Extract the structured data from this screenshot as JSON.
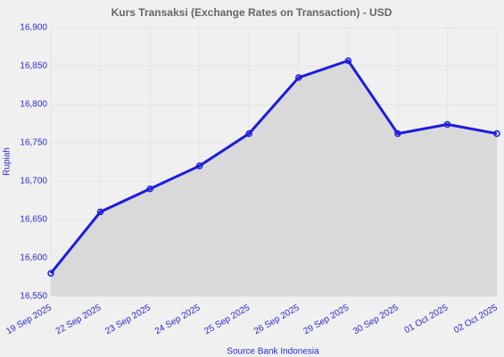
{
  "chart_data": {
    "type": "area",
    "title": "Kurs Transaksi (Exchange Rates on Transaction) - USD",
    "ylabel": "Rupiah",
    "source": "Source Bank Indonesia",
    "categories": [
      "19 Sep 2025",
      "22 Sep 2025",
      "23 Sep 2025",
      "24 Sep 2025",
      "25 Sep 2025",
      "26 Sep 2025",
      "29 Sep 2025",
      "30 Sep 2025",
      "01 Oct 2025",
      "02 Oct 2025"
    ],
    "values": [
      16580,
      16660,
      16690,
      16720,
      16762,
      16835,
      16857,
      16762,
      16774,
      16762
    ],
    "color": "#1c1ce0",
    "fill": "#d9d9d9",
    "ylim": [
      16550,
      16900
    ],
    "yticks": [
      {
        "value": 16550,
        "label": "16,550"
      },
      {
        "value": 16600,
        "label": "16,600"
      },
      {
        "value": 16650,
        "label": "16,650"
      },
      {
        "value": 16700,
        "label": "16,700"
      },
      {
        "value": 16750,
        "label": "16,750"
      },
      {
        "value": 16800,
        "label": "16,800"
      },
      {
        "value": 16850,
        "label": "16,850"
      },
      {
        "value": 16900,
        "label": "16,900"
      }
    ],
    "grid": true
  }
}
